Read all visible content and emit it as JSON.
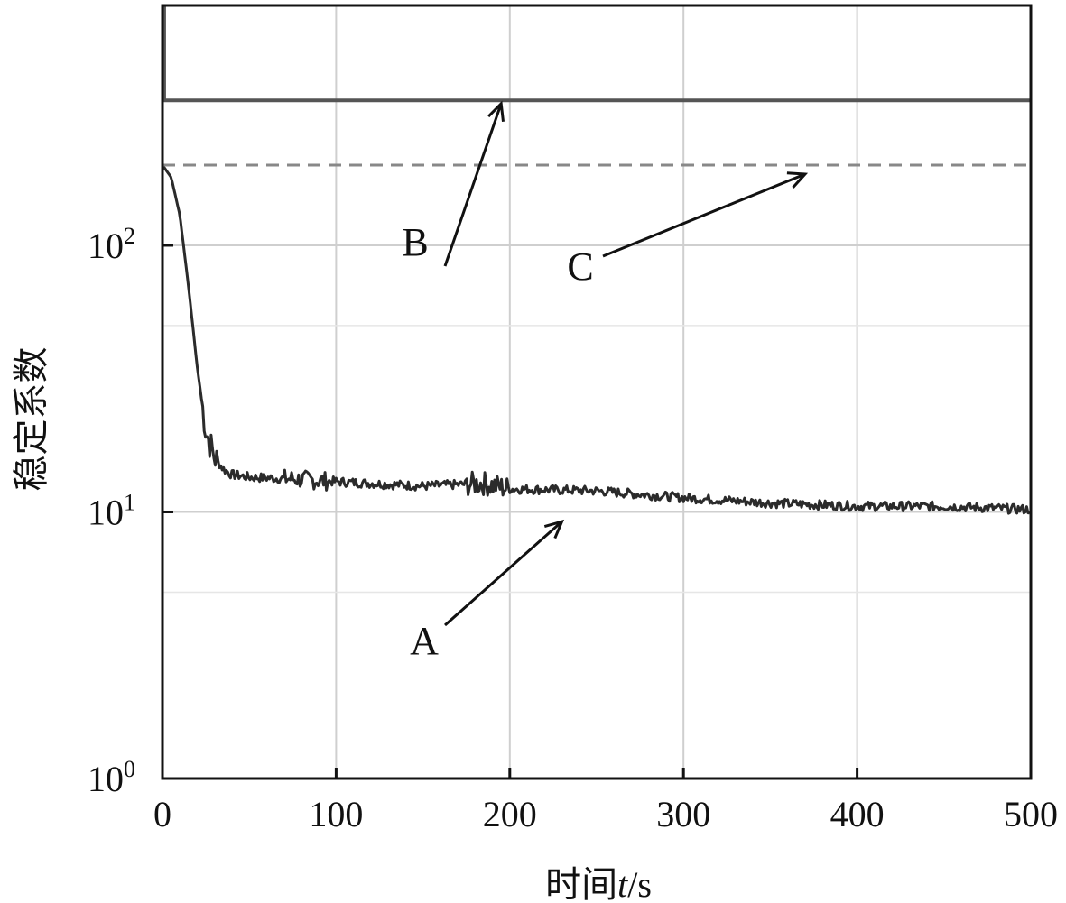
{
  "chart_data": {
    "type": "line",
    "xlabel_prefix": "时间",
    "xlabel_var": "t",
    "xlabel_unit": "/s",
    "ylabel": "稳定系数",
    "xlim": [
      0,
      500
    ],
    "ylim_log10": [
      0,
      2.9
    ],
    "y_scale": "log",
    "grid": true,
    "x_ticks": [
      "0",
      "100",
      "200",
      "300",
      "400",
      "500"
    ],
    "y_ticks": [
      {
        "base": "10",
        "exp": "0",
        "value": 1
      },
      {
        "base": "10",
        "exp": "1",
        "value": 10
      },
      {
        "base": "10",
        "exp": "2",
        "value": 100
      }
    ],
    "series": [
      {
        "label": "A",
        "style": "solid-noisy",
        "color": "#2b2b2b",
        "x": [
          0,
          5,
          10,
          15,
          20,
          25,
          30,
          35,
          40,
          50,
          75,
          100,
          150,
          185,
          200,
          250,
          300,
          350,
          400,
          450,
          500
        ],
        "y": [
          200,
          180,
          130,
          70,
          35,
          20,
          16,
          14.5,
          13.8,
          13.5,
          13.3,
          13.0,
          12.5,
          12.8,
          12.2,
          12.0,
          11.3,
          10.8,
          10.5,
          10.5,
          10.2
        ]
      },
      {
        "label": "B",
        "style": "solid",
        "color": "#555555",
        "x": [
          0,
          500
        ],
        "y": [
          350,
          350
        ]
      },
      {
        "label": "C",
        "style": "dashed",
        "color": "#888888",
        "x": [
          0,
          500
        ],
        "y": [
          200,
          200
        ]
      }
    ],
    "annotations": [
      {
        "text": "A",
        "target": [
          230,
          9.2
        ]
      },
      {
        "text": "B",
        "target": [
          195,
          340
        ]
      },
      {
        "text": "C",
        "target": [
          370,
          185
        ]
      }
    ]
  }
}
